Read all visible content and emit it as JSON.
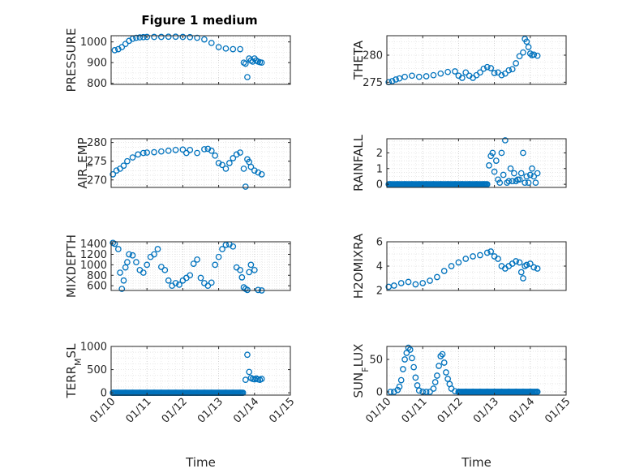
{
  "figure_title": "Figure 1 medium",
  "marker_color": "#0072bd",
  "grid": true,
  "grid_style": "dotted",
  "chart_data": [
    {
      "type": "scatter",
      "title": "Figure 1 medium",
      "ylabel": "PRESSURE",
      "ylim": [
        795,
        1030
      ],
      "yticks": [
        800,
        900,
        1000
      ],
      "ytick_labels": [
        "800",
        "900",
        "1000"
      ],
      "xlim": [
        10,
        15
      ],
      "xticks": [
        10,
        11,
        12,
        13,
        14,
        15
      ],
      "xtick_labels": [],
      "xlabel": "",
      "x": [
        10.1,
        10.2,
        10.3,
        10.4,
        10.5,
        10.6,
        10.7,
        10.8,
        10.9,
        11.0,
        11.2,
        11.4,
        11.6,
        11.8,
        12.0,
        12.2,
        12.4,
        12.6,
        12.8,
        13.0,
        13.2,
        13.4,
        13.6,
        13.7,
        13.75,
        13.8,
        13.85,
        13.9,
        13.95,
        14.0,
        14.05,
        14.1,
        14.15,
        14.2
      ],
      "y": [
        960,
        965,
        975,
        990,
        1005,
        1015,
        1020,
        1022,
        1023,
        1024,
        1024,
        1024,
        1025,
        1025,
        1024,
        1023,
        1020,
        1012,
        995,
        975,
        968,
        965,
        965,
        900,
        895,
        830,
        920,
        910,
        905,
        920,
        910,
        905,
        902,
        900
      ]
    },
    {
      "type": "scatter",
      "ylabel": "THETA",
      "ylim": [
        274.6,
        283.6
      ],
      "yticks": [
        275,
        280
      ],
      "ytick_labels": [
        "275",
        "280"
      ],
      "xlim": [
        10,
        15
      ],
      "xticks": [
        10,
        11,
        12,
        13,
        14,
        15
      ],
      "xtick_labels": [],
      "xlabel": "",
      "x": [
        10.05,
        10.15,
        10.25,
        10.35,
        10.5,
        10.7,
        10.9,
        11.1,
        11.3,
        11.5,
        11.7,
        11.9,
        12.0,
        12.1,
        12.2,
        12.3,
        12.4,
        12.5,
        12.6,
        12.7,
        12.8,
        12.9,
        13.0,
        13.1,
        13.2,
        13.3,
        13.4,
        13.5,
        13.6,
        13.7,
        13.8,
        13.85,
        13.9,
        13.95,
        14.0,
        14.05,
        14.1,
        14.2
      ],
      "y": [
        275.0,
        275.2,
        275.5,
        275.7,
        276.0,
        276.2,
        276.0,
        276.1,
        276.3,
        276.6,
        276.9,
        277.0,
        276.2,
        275.8,
        276.8,
        276.2,
        275.8,
        276.3,
        276.8,
        277.5,
        277.8,
        277.6,
        276.7,
        276.8,
        276.3,
        276.6,
        277.2,
        277.4,
        278.5,
        279.8,
        280.5,
        283.0,
        282.5,
        281.5,
        280.3,
        280.0,
        280.1,
        279.9
      ]
    },
    {
      "type": "scatter",
      "ylabel": "AIR_TEMP",
      "ylabel_parts": [
        "AIR",
        "T",
        "EMP"
      ],
      "ylim": [
        268,
        281
      ],
      "yticks": [
        270,
        275,
        280
      ],
      "ytick_labels": [
        "270",
        "275",
        "280"
      ],
      "xlim": [
        10,
        15
      ],
      "xticks": [
        10,
        11,
        12,
        13,
        14,
        15
      ],
      "xtick_labels": [],
      "xlabel": "",
      "x": [
        10.05,
        10.15,
        10.25,
        10.35,
        10.45,
        10.6,
        10.75,
        10.9,
        11.0,
        11.2,
        11.4,
        11.6,
        11.8,
        12.0,
        12.1,
        12.2,
        12.4,
        12.6,
        12.7,
        12.8,
        12.9,
        13.0,
        13.1,
        13.2,
        13.3,
        13.4,
        13.5,
        13.6,
        13.7,
        13.75,
        13.8,
        13.85,
        13.9,
        14.0,
        14.1,
        14.2
      ],
      "y": [
        271.5,
        272.5,
        273.0,
        273.8,
        275.0,
        276.0,
        276.8,
        277.2,
        277.3,
        277.4,
        277.6,
        277.8,
        278.0,
        278.1,
        277.2,
        278.0,
        277.2,
        278.2,
        278.3,
        277.8,
        276.5,
        274.5,
        274.0,
        273.0,
        274.5,
        275.8,
        276.8,
        277.3,
        273.0,
        268.2,
        275.5,
        274.8,
        273.5,
        272.5,
        272.0,
        271.5
      ]
    },
    {
      "type": "scatter",
      "ylabel": "RAINFALL",
      "ylim": [
        -0.2,
        2.9
      ],
      "yticks": [
        0,
        1,
        2
      ],
      "ytick_labels": [
        "0",
        "1",
        "2"
      ],
      "xlim": [
        10,
        15
      ],
      "xticks": [
        10,
        11,
        12,
        13,
        14,
        15
      ],
      "xtick_labels": [],
      "xlabel": "",
      "x": [
        10.1,
        10.3,
        10.5,
        10.7,
        10.9,
        11.1,
        11.3,
        11.5,
        11.7,
        11.9,
        12.1,
        12.3,
        12.5,
        12.7,
        12.8,
        12.85,
        12.9,
        12.95,
        13.0,
        13.05,
        13.1,
        13.15,
        13.2,
        13.25,
        13.3,
        13.35,
        13.4,
        13.45,
        13.5,
        13.55,
        13.6,
        13.65,
        13.7,
        13.75,
        13.8,
        13.85,
        13.9,
        13.95,
        14.0,
        14.05,
        14.1,
        14.15,
        14.2
      ],
      "y": [
        0,
        0,
        0,
        0,
        0,
        0,
        0,
        0,
        0,
        0,
        0,
        0,
        0,
        0,
        0,
        1.2,
        1.8,
        2.0,
        0.8,
        1.5,
        0.3,
        0.1,
        2.0,
        0.6,
        2.8,
        0.1,
        0.2,
        1.0,
        0.2,
        0.7,
        0.2,
        0.3,
        0.3,
        0.7,
        2.0,
        0.1,
        0.5,
        0.1,
        0.6,
        1.0,
        0.5,
        0.1,
        0.7
      ]
    },
    {
      "type": "scatter",
      "ylabel": "MIXDEPTH",
      "ylim": [
        510,
        1440
      ],
      "yticks": [
        600,
        800,
        1000,
        1200,
        1400
      ],
      "ytick_labels": [
        "600",
        "800",
        "1000",
        "1200",
        "1400"
      ],
      "xlim": [
        10,
        15
      ],
      "xticks": [
        10,
        11,
        12,
        13,
        14,
        15
      ],
      "xtick_labels": [],
      "xlabel": "",
      "x": [
        10.05,
        10.1,
        10.2,
        10.25,
        10.3,
        10.35,
        10.4,
        10.45,
        10.5,
        10.6,
        10.7,
        10.8,
        10.9,
        11.0,
        11.1,
        11.2,
        11.3,
        11.4,
        11.5,
        11.6,
        11.7,
        11.8,
        11.9,
        12.0,
        12.1,
        12.2,
        12.3,
        12.4,
        12.5,
        12.6,
        12.7,
        12.8,
        12.9,
        13.0,
        13.1,
        13.2,
        13.3,
        13.4,
        13.5,
        13.6,
        13.65,
        13.7,
        13.75,
        13.8,
        13.85,
        13.9,
        14.0,
        14.1,
        14.2
      ],
      "y": [
        1420,
        1400,
        1300,
        850,
        540,
        700,
        950,
        1050,
        1200,
        1180,
        1050,
        900,
        850,
        1000,
        1150,
        1200,
        1300,
        960,
        900,
        700,
        600,
        650,
        620,
        700,
        750,
        800,
        1020,
        1100,
        750,
        650,
        600,
        660,
        1000,
        1150,
        1300,
        1380,
        1390,
        1350,
        950,
        900,
        760,
        570,
        540,
        520,
        860,
        1000,
        900,
        520,
        510
      ]
    },
    {
      "type": "scatter",
      "ylabel": "H2OMIXRA",
      "ylim": [
        2.0,
        6.0
      ],
      "yticks": [
        2,
        4,
        6
      ],
      "ytick_labels": [
        "2",
        "4",
        "6"
      ],
      "xlim": [
        10,
        15
      ],
      "xticks": [
        10,
        11,
        12,
        13,
        14,
        15
      ],
      "xtick_labels": [],
      "xlabel": "",
      "x": [
        10.05,
        10.2,
        10.4,
        10.6,
        10.8,
        11.0,
        11.2,
        11.4,
        11.6,
        11.8,
        12.0,
        12.2,
        12.4,
        12.6,
        12.8,
        12.9,
        13.0,
        13.1,
        13.2,
        13.3,
        13.4,
        13.5,
        13.6,
        13.7,
        13.75,
        13.8,
        13.85,
        13.9,
        14.0,
        14.1,
        14.2
      ],
      "y": [
        2.3,
        2.4,
        2.6,
        2.7,
        2.5,
        2.6,
        2.8,
        3.1,
        3.6,
        4.0,
        4.3,
        4.6,
        4.8,
        4.9,
        5.1,
        5.2,
        4.8,
        4.6,
        4.0,
        3.8,
        4.0,
        4.2,
        4.4,
        4.3,
        3.5,
        3.0,
        4.0,
        4.1,
        4.2,
        3.9,
        3.8
      ]
    },
    {
      "type": "scatter",
      "ylabel": "TERR_MSL",
      "ylabel_parts": [
        "TERR",
        "M",
        "SL"
      ],
      "ylim": [
        -50,
        1000
      ],
      "yticks": [
        0,
        500,
        1000
      ],
      "ytick_labels": [
        "0",
        "500",
        "1000"
      ],
      "xlim": [
        10,
        15
      ],
      "xticks": [
        10,
        11,
        12,
        13,
        14,
        15
      ],
      "xtick_labels": [
        "01/10",
        "01/11",
        "01/12",
        "01/13",
        "01/14",
        "01/15"
      ],
      "xlabel": "Time",
      "x": [
        10.05,
        10.2,
        10.4,
        10.6,
        10.8,
        11.0,
        11.2,
        11.4,
        11.6,
        11.8,
        12.0,
        12.2,
        12.4,
        12.6,
        12.8,
        13.0,
        13.2,
        13.4,
        13.6,
        13.75,
        13.8,
        13.85,
        13.9,
        13.95,
        14.0,
        14.05,
        14.1,
        14.15,
        14.2
      ],
      "y": [
        0,
        0,
        0,
        0,
        0,
        0,
        0,
        0,
        0,
        0,
        0,
        0,
        0,
        0,
        0,
        0,
        0,
        0,
        0,
        280,
        820,
        450,
        320,
        300,
        290,
        310,
        290,
        280,
        300
      ]
    },
    {
      "type": "scatter",
      "ylabel": "SUN_FLUX",
      "ylabel_parts": [
        "SUN",
        "F",
        "LUX"
      ],
      "ylim": [
        -5,
        70
      ],
      "yticks": [
        0,
        50
      ],
      "ytick_labels": [
        "0",
        "50"
      ],
      "xlim": [
        10,
        15
      ],
      "xticks": [
        10,
        11,
        12,
        13,
        14,
        15
      ],
      "xtick_labels": [
        "01/10",
        "01/11",
        "01/12",
        "01/13",
        "01/14",
        "01/15"
      ],
      "xlabel": "Time",
      "x": [
        10.1,
        10.2,
        10.3,
        10.35,
        10.4,
        10.45,
        10.5,
        10.55,
        10.6,
        10.65,
        10.7,
        10.75,
        10.8,
        10.85,
        10.9,
        11.0,
        11.1,
        11.2,
        11.3,
        11.35,
        11.4,
        11.45,
        11.5,
        11.55,
        11.6,
        11.65,
        11.7,
        11.75,
        11.8,
        11.9,
        12.0,
        12.2,
        12.4,
        12.6,
        12.8,
        13.0,
        13.2,
        13.4,
        13.6,
        13.8,
        14.0,
        14.2
      ],
      "y": [
        0,
        0,
        3,
        8,
        18,
        35,
        50,
        60,
        68,
        65,
        52,
        38,
        22,
        10,
        2,
        0,
        0,
        0,
        5,
        15,
        25,
        40,
        55,
        58,
        45,
        30,
        20,
        12,
        5,
        1,
        0,
        0,
        0,
        0,
        0,
        0,
        0,
        0,
        0,
        0,
        0,
        0
      ]
    }
  ]
}
